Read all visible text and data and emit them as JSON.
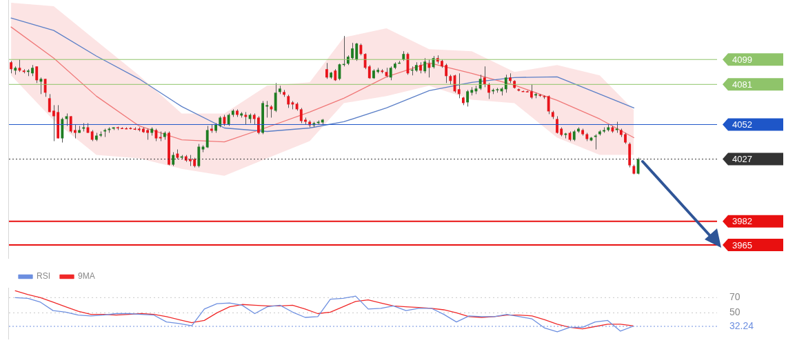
{
  "chart_data": [
    {
      "type": "candlestick",
      "categories": [
        null,
        null,
        null,
        null,
        null,
        null,
        null,
        null,
        null,
        null,
        null,
        null,
        null,
        null,
        null,
        null,
        null,
        null,
        null,
        null,
        null,
        null,
        null,
        null,
        null,
        null,
        null,
        null,
        null,
        null,
        null,
        null,
        null,
        null,
        null,
        null,
        null,
        null,
        null,
        null,
        null,
        null,
        null,
        null,
        null,
        null,
        null,
        null,
        null,
        null,
        null,
        null,
        null,
        null,
        null,
        null,
        null,
        null,
        null,
        null,
        null,
        null,
        null,
        null,
        null,
        null,
        null,
        null,
        null,
        null,
        null,
        null,
        null,
        null,
        null,
        null,
        null,
        null,
        null,
        null,
        null,
        null,
        null,
        null,
        null,
        null,
        null,
        null,
        null,
        null,
        null,
        null,
        null,
        null,
        null,
        null,
        null,
        null,
        null,
        null,
        null,
        null,
        null,
        null,
        null,
        null,
        null,
        null,
        null,
        null,
        null,
        null,
        null,
        null,
        null,
        null,
        null,
        null,
        null,
        null,
        null,
        null,
        null,
        null,
        null,
        null,
        null,
        null,
        null,
        null,
        null,
        null,
        null,
        null,
        null,
        null,
        null,
        null,
        null,
        null,
        null,
        null,
        null,
        null,
        null,
        null,
        null,
        null,
        null,
        null,
        null,
        null,
        null,
        null,
        null,
        null,
        null,
        null,
        null,
        null,
        null,
        null,
        null,
        null,
        null,
        null
      ],
      "ohlc": [
        [
          4097,
          4098,
          4089,
          4092
        ],
        [
          4091,
          4094,
          4088,
          4093
        ],
        [
          4093,
          4099,
          4090,
          4091
        ],
        [
          4091,
          4092,
          4089,
          4090
        ],
        [
          4090,
          4092,
          4087,
          4091
        ],
        [
          4089,
          4095,
          4087,
          4093
        ],
        [
          4094,
          4094,
          4082,
          4084
        ],
        [
          4083,
          4086,
          4074,
          4085
        ],
        [
          4085,
          4085,
          4072,
          4075
        ],
        [
          4071,
          4074,
          4061,
          4061
        ],
        [
          4062,
          4066,
          4040,
          4058
        ],
        [
          4061,
          4066,
          4042,
          4042
        ],
        [
          4042,
          4057,
          4039,
          4056
        ],
        [
          4056,
          4060,
          4051,
          4058
        ],
        [
          4058,
          4058,
          4046,
          4047
        ],
        [
          4048,
          4052,
          4042,
          4046
        ],
        [
          4046,
          4051,
          4046,
          4048
        ],
        [
          4049,
          4053,
          4047,
          4050
        ],
        [
          4050,
          4053,
          4046,
          4046
        ],
        [
          4047,
          4048,
          4040,
          4041
        ],
        [
          4041,
          4046,
          4040,
          4044
        ],
        [
          4044,
          4047,
          4043,
          4045
        ],
        [
          4047,
          4049,
          4043,
          4048
        ],
        [
          4048,
          4050,
          4046,
          4049
        ],
        [
          4049,
          4050,
          4048,
          4050
        ],
        [
          4050,
          4050.5,
          4048,
          4049.5
        ],
        [
          4049.5,
          4050,
          4049,
          4049.2
        ],
        [
          4049.3,
          4050,
          4048.7,
          4049
        ],
        [
          4049.5,
          4050,
          4048.5,
          4049
        ],
        [
          4049,
          4050,
          4048,
          4048.7
        ],
        [
          4049,
          4050,
          4047,
          4048
        ],
        [
          4049,
          4050,
          4046,
          4046.5
        ],
        [
          4048,
          4049,
          4041,
          4046
        ],
        [
          4046,
          4050,
          4044,
          4049
        ],
        [
          4048,
          4049,
          4040,
          4042
        ],
        [
          4043,
          4047,
          4040,
          4042
        ],
        [
          4043,
          4047,
          4041,
          4046
        ],
        [
          4046,
          4047,
          4022.5,
          4023
        ],
        [
          4023,
          4032,
          4022,
          4030
        ],
        [
          4031,
          4034,
          4027,
          4028
        ],
        [
          4028,
          4030,
          4027,
          4029
        ],
        [
          4029,
          4030,
          4025,
          4026
        ],
        [
          4027,
          4030,
          4022,
          4025.5
        ],
        [
          4027,
          4028,
          4021,
          4022
        ],
        [
          4022,
          4038,
          4021,
          4036
        ],
        [
          4034,
          4037,
          4032,
          4036
        ],
        [
          4035.5,
          4051,
          4035,
          4048
        ],
        [
          4049,
          4052,
          4046,
          4047.5
        ],
        [
          4047.5,
          4053,
          4046,
          4052
        ],
        [
          4051,
          4058,
          4050,
          4057
        ],
        [
          4057.5,
          4059,
          4051,
          4052.5
        ],
        [
          4052,
          4060,
          4051,
          4059
        ],
        [
          4059,
          4063,
          4057.5,
          4062
        ],
        [
          4062,
          4063,
          4057.5,
          4059
        ],
        [
          4058.5,
          4061,
          4057,
          4060
        ],
        [
          4059,
          4061,
          4052,
          4057.5
        ],
        [
          4056,
          4060,
          4053,
          4059
        ],
        [
          4059,
          4060,
          4052,
          4056
        ],
        [
          4057,
          4058,
          4045,
          4046
        ],
        [
          4046,
          4069,
          4045,
          4067.5
        ],
        [
          4065,
          4069,
          4057,
          4066
        ],
        [
          4065,
          4066,
          4057,
          4063
        ],
        [
          4062,
          4082,
          4061,
          4075
        ],
        [
          4075.5,
          4080,
          4074,
          4078
        ],
        [
          4075.5,
          4077,
          4072,
          4073.5
        ],
        [
          4072.5,
          4073.5,
          4064,
          4066.5
        ],
        [
          4068,
          4069,
          4063,
          4066.5
        ],
        [
          4067,
          4068,
          4062,
          4063
        ],
        [
          4063,
          4064,
          4053,
          4054.5
        ],
        [
          4055.5,
          4057,
          4052,
          4054
        ],
        [
          4054,
          4055,
          4050,
          4051.5
        ],
        [
          4051.5,
          4054,
          4050,
          4053
        ],
        [
          4053,
          4055,
          4052,
          4054
        ],
        [
          4053.5,
          4056,
          4052,
          4055.5
        ],
        [
          4092,
          4096.5,
          4085,
          4086
        ],
        [
          4086,
          4090,
          4085,
          4089.5
        ],
        [
          4091,
          4092,
          4083.5,
          4084
        ],
        [
          4085,
          4096,
          4084,
          4095.5
        ],
        [
          4095.5,
          4116,
          4094,
          4095.8
        ],
        [
          4096,
          4102,
          4095,
          4101
        ],
        [
          4100,
          4111,
          4099,
          4107
        ],
        [
          4099,
          4111,
          4098,
          4110.5
        ],
        [
          4109.5,
          4110.5,
          4102,
          4103
        ],
        [
          4103,
          4103.5,
          4092,
          4093
        ],
        [
          4094,
          4095,
          4085,
          4085.5
        ],
        [
          4085.5,
          4092,
          4085,
          4091
        ],
        [
          4090,
          4093,
          4089,
          4091.5
        ],
        [
          4091,
          4092,
          4089,
          4090
        ],
        [
          4090,
          4093,
          4086,
          4087
        ],
        [
          4086,
          4094,
          4084,
          4093
        ],
        [
          4093,
          4097,
          4092,
          4096
        ],
        [
          4096.5,
          4098,
          4096,
          4096.7
        ],
        [
          4099,
          4105,
          4098,
          4103
        ],
        [
          4103,
          4104,
          4088,
          4089
        ],
        [
          4091.5,
          4094,
          4087.5,
          4091.7
        ],
        [
          4091,
          4097,
          4090,
          4095
        ],
        [
          4095,
          4097,
          4089,
          4091
        ],
        [
          4090.5,
          4100,
          4089,
          4097.5
        ],
        [
          4096,
          4099,
          4086,
          4093
        ],
        [
          4093.5,
          4101.5,
          4092.5,
          4100
        ],
        [
          4100,
          4102,
          4096,
          4097.5
        ],
        [
          4098,
          4099,
          4093,
          4094
        ],
        [
          4095,
          4096,
          4082,
          4087
        ],
        [
          4087,
          4088,
          4081,
          4083.5
        ],
        [
          4087.5,
          4088,
          4075,
          4076
        ],
        [
          4077.5,
          4089,
          4071,
          4074
        ],
        [
          4071.5,
          4072,
          4066,
          4067.5
        ],
        [
          4068,
          4077,
          4065,
          4076
        ],
        [
          4075,
          4079,
          4073,
          4077
        ],
        [
          4076,
          4080,
          4074,
          4078
        ],
        [
          4078,
          4088,
          4077,
          4085
        ],
        [
          4086,
          4094,
          4079,
          4081
        ],
        [
          4081,
          4082,
          4070.5,
          4075
        ],
        [
          4076,
          4078,
          4074,
          4077
        ],
        [
          4077,
          4078.5,
          4075,
          4077.5
        ],
        [
          4076,
          4079,
          4073,
          4078
        ],
        [
          4077.5,
          4088,
          4075,
          4086
        ],
        [
          4086,
          4089,
          4082,
          4083.5
        ],
        [
          4083.5,
          4084,
          4078,
          4078.5
        ],
        [
          4077.5,
          4078,
          4076,
          4076.5
        ],
        [
          4076.2,
          4076.5,
          4075.7,
          4076
        ],
        [
          4076,
          4076.5,
          4075.5,
          4075.8
        ],
        [
          4076,
          4081,
          4070.5,
          4071.5
        ],
        [
          4073,
          4075,
          4071,
          4074
        ],
        [
          4073.5,
          4074,
          4072,
          4073
        ],
        [
          4072.5,
          4073,
          4070.5,
          4072
        ],
        [
          4072.5,
          4073,
          4059.5,
          4061.5
        ],
        [
          4061,
          4062,
          4056,
          4057.5
        ],
        [
          4056,
          4058,
          4045.5,
          4046
        ],
        [
          4049,
          4050,
          4043.5,
          4044.5
        ],
        [
          4044.5,
          4046,
          4042,
          4045.5
        ],
        [
          4046,
          4047,
          4040,
          4041
        ],
        [
          4041,
          4048,
          4040,
          4047
        ],
        [
          4047,
          4050,
          4046,
          4049
        ],
        [
          4048,
          4049,
          4044,
          4045
        ],
        [
          4045,
          4046,
          4040,
          4041.5
        ],
        [
          4040.5,
          4043,
          4040,
          4042.5
        ],
        [
          4043,
          4045,
          4034,
          4044
        ],
        [
          4045,
          4048,
          4044,
          4047
        ],
        [
          4047,
          4050,
          4046,
          4048
        ],
        [
          4048,
          4052,
          4047,
          4050
        ],
        [
          4050,
          4051,
          4046,
          4047
        ],
        [
          4048,
          4054,
          4046,
          4049
        ],
        [
          4048,
          4049,
          4043,
          4044.5
        ],
        [
          4045,
          4046,
          4038,
          4039
        ],
        [
          4038,
          4039,
          4021,
          4022.5
        ],
        [
          4022,
          4023,
          4016,
          4016.5
        ],
        [
          4016.5,
          4028,
          4016,
          4027
        ],
        null,
        null,
        null,
        null,
        null,
        null,
        null,
        null,
        null,
        null,
        null,
        null,
        null,
        null,
        null,
        null,
        null,
        null
      ],
      "colors": [
        "#e8141b",
        "#1e7d22",
        "#e8141b",
        "#e8141b",
        "#1e7d22",
        "#1e7d22",
        "#e8141b",
        "#1e7d22",
        "#e8141b",
        "#e8141b",
        "#e8141b",
        "#e8141b",
        "#1e7d22",
        "#1e7d22",
        "#e8141b",
        "#e8141b",
        "#1e7d22",
        "#1e7d22",
        "#e8141b",
        "#e8141b",
        "#1e7d22",
        "#1e7d22",
        "#1e7d22",
        "#1e7d22",
        "#1e7d22",
        "#e8141b",
        "#e8141b",
        "#e8141b",
        "#e8141b",
        "#e8141b",
        "#e8141b",
        "#e8141b",
        "#e8141b",
        "#1e7d22",
        "#e8141b",
        "#e8141b",
        "#1e7d22",
        "#e8141b",
        "#1e7d22",
        "#e8141b",
        "#1e7d22",
        "#e8141b",
        "#e8141b",
        "#e8141b",
        "#1e7d22",
        "#1e7d22",
        "#1e7d22",
        "#e8141b",
        "#1e7d22",
        "#1e7d22",
        "#e8141b",
        "#1e7d22",
        "#1e7d22",
        "#e8141b",
        "#1e7d22",
        "#e8141b",
        "#1e7d22",
        "#e8141b",
        "#e8141b",
        "#1e7d22",
        "#1e7d22",
        "#e8141b",
        "#1e7d22",
        "#1e7d22",
        "#e8141b",
        "#e8141b",
        "#e8141b",
        "#e8141b",
        "#e8141b",
        "#e8141b",
        "#e8141b",
        "#1e7d22",
        "#1e7d22",
        "#1e7d22",
        "#e8141b",
        "#1e7d22",
        "#e8141b",
        "#1e7d22",
        "#1e7d22",
        "#1e7d22",
        "#1e7d22",
        "#1e7d22",
        "#e8141b",
        "#e8141b",
        "#e8141b",
        "#1e7d22",
        "#1e7d22",
        "#e8141b",
        "#e8141b",
        "#1e7d22",
        "#1e7d22",
        "#1e7d22",
        "#1e7d22",
        "#e8141b",
        "#1e7d22",
        "#1e7d22",
        "#e8141b",
        "#1e7d22",
        "#e8141b",
        "#1e7d22",
        "#e8141b",
        "#e8141b",
        "#e8141b",
        "#e8141b",
        "#e8141b",
        "#e8141b",
        "#e8141b",
        "#1e7d22",
        "#1e7d22",
        "#1e7d22",
        "#1e7d22",
        "#e8141b",
        "#e8141b",
        "#1e7d22",
        "#1e7d22",
        "#1e7d22",
        "#1e7d22",
        "#e8141b",
        "#e8141b",
        "#e8141b",
        "#e8141b",
        "#e8141b",
        "#e8141b",
        "#1e7d22",
        "#e8141b",
        "#e8141b",
        "#e8141b",
        "#e8141b",
        "#e8141b",
        "#e8141b",
        "#1e7d22",
        "#e8141b",
        "#1e7d22",
        "#1e7d22",
        "#e8141b",
        "#e8141b",
        "#1e7d22",
        "#1e7d22",
        "#1e7d22",
        "#1e7d22",
        "#1e7d22",
        "#e8141b",
        "#1e7d22",
        "#e8141b",
        "#e8141b",
        "#e8141b",
        "#e8141b",
        "#1e7d22",
        null,
        null,
        null,
        null,
        null,
        null,
        null,
        null,
        null,
        null,
        null,
        null,
        null,
        null,
        null,
        null,
        null,
        null
      ],
      "series": [
        {
          "type": "line",
          "color": "#5b7fc7",
          "values": [
            4129,
            null,
            null,
            null,
            null,
            null,
            null,
            null,
            null,
            null,
            4120,
            null,
            null,
            null,
            null,
            null,
            null,
            null,
            null,
            null,
            4101.5,
            null,
            null,
            null,
            null,
            null,
            null,
            null,
            null,
            null,
            4085,
            null,
            null,
            null,
            null,
            null,
            null,
            null,
            null,
            null,
            4065,
            null,
            null,
            null,
            null,
            null,
            null,
            null,
            null,
            null,
            4049.5,
            null,
            null,
            null,
            null,
            null,
            null,
            null,
            null,
            null,
            4047,
            null,
            null,
            null,
            null,
            null,
            null,
            null,
            null,
            null,
            4049.5,
            null,
            null,
            null,
            null,
            null,
            null,
            null,
            4054,
            null,
            null,
            null,
            null,
            null,
            null,
            null,
            null,
            null,
            4064,
            null,
            null,
            null,
            null,
            null,
            null,
            null,
            null,
            null,
            4076.5,
            null,
            null,
            null,
            null,
            null,
            null,
            null,
            null,
            null,
            4082.5,
            null,
            null,
            null,
            null,
            null,
            null,
            null,
            null,
            null,
            4086,
            null,
            null,
            null,
            null,
            null,
            null,
            null,
            null,
            null,
            4086.5,
            null,
            null,
            null,
            null,
            null,
            null,
            null,
            null,
            null,
            4074,
            null,
            null,
            null,
            null,
            null,
            null,
            null,
            4064,
            null,
            null,
            null,
            null,
            null,
            null,
            null,
            null,
            null,
            null,
            null,
            null,
            null,
            null,
            null,
            null,
            null,
            null,
            null
          ]
        },
        {
          "type": "line",
          "color": "#f07878",
          "values": [
            4122.5,
            null,
            null,
            null,
            null,
            null,
            null,
            null,
            null,
            null,
            4100,
            null,
            null,
            null,
            null,
            null,
            null,
            null,
            null,
            null,
            4072.5,
            null,
            null,
            null,
            null,
            null,
            null,
            null,
            null,
            null,
            4051,
            null,
            null,
            null,
            null,
            null,
            null,
            null,
            null,
            null,
            4041,
            null,
            null,
            null,
            null,
            null,
            null,
            null,
            null,
            null,
            4039.5,
            null,
            null,
            null,
            null,
            null,
            null,
            null,
            null,
            null,
            4050,
            null,
            null,
            null,
            null,
            null,
            null,
            null,
            null,
            null,
            4061,
            null,
            null,
            null,
            null,
            null,
            null,
            null,
            4071,
            null,
            null,
            null,
            null,
            null,
            null,
            null,
            null,
            null,
            4086.5,
            null,
            null,
            null,
            null,
            null,
            null,
            null,
            null,
            null,
            4096.5,
            null,
            null,
            null,
            null,
            null,
            null,
            null,
            null,
            null,
            4089,
            null,
            null,
            null,
            null,
            null,
            null,
            null,
            null,
            null,
            4080.5,
            null,
            null,
            null,
            null,
            null,
            null,
            null,
            null,
            null,
            4069.5,
            null,
            null,
            null,
            null,
            null,
            null,
            null,
            null,
            null,
            4056,
            null,
            null,
            null,
            null,
            null,
            null,
            null,
            4042.5,
            null,
            null,
            null,
            null,
            null,
            null,
            null,
            null,
            null,
            null,
            null,
            null,
            null,
            null,
            null,
            null,
            null,
            null,
            null
          ],
          "upper": [
            4140,
            null,
            null,
            null,
            null,
            null,
            null,
            null,
            null,
            null,
            4137.5,
            null,
            null,
            null,
            null,
            null,
            null,
            null,
            null,
            null,
            4112.5,
            null,
            null,
            null,
            null,
            null,
            null,
            null,
            null,
            null,
            4087.5,
            null,
            null,
            null,
            null,
            null,
            null,
            null,
            null,
            null,
            4060,
            null,
            null,
            null,
            null,
            null,
            null,
            null,
            null,
            null,
            4060,
            null,
            null,
            null,
            null,
            null,
            null,
            null,
            null,
            null,
            4080,
            null,
            null,
            null,
            null,
            null,
            null,
            null,
            null,
            null,
            4082.5,
            null,
            null,
            null,
            null,
            null,
            null,
            null,
            4115,
            null,
            null,
            null,
            null,
            null,
            null,
            null,
            null,
            null,
            4121.5,
            null,
            null,
            null,
            null,
            null,
            null,
            null,
            null,
            null,
            4106.5,
            null,
            null,
            null,
            null,
            null,
            null,
            null,
            null,
            null,
            4105,
            null,
            null,
            null,
            null,
            null,
            null,
            null,
            null,
            null,
            4090,
            null,
            null,
            null,
            null,
            null,
            null,
            null,
            null,
            null,
            4095,
            null,
            null,
            null,
            null,
            null,
            null,
            null,
            null,
            null,
            4087.5,
            null,
            null,
            null,
            null,
            null,
            null,
            null,
            4062.5,
            null,
            null,
            null,
            null,
            null,
            null,
            null,
            null,
            null,
            null,
            null,
            null,
            null,
            null,
            null,
            null,
            null,
            null,
            null
          ],
          "lower": [
            4087.5,
            null,
            null,
            null,
            null,
            null,
            null,
            null,
            null,
            null,
            4055,
            null,
            null,
            null,
            null,
            null,
            null,
            null,
            null,
            null,
            4030,
            null,
            null,
            null,
            null,
            null,
            null,
            null,
            null,
            null,
            4027.5,
            null,
            null,
            null,
            null,
            null,
            null,
            null,
            null,
            null,
            4020,
            null,
            null,
            null,
            null,
            null,
            null,
            null,
            null,
            null,
            4015,
            null,
            null,
            null,
            null,
            null,
            null,
            null,
            null,
            null,
            4027.5,
            null,
            null,
            null,
            null,
            null,
            null,
            null,
            null,
            null,
            4040,
            null,
            null,
            null,
            null,
            null,
            null,
            null,
            4067.5,
            null,
            null,
            null,
            null,
            null,
            null,
            null,
            null,
            null,
            4072.5,
            null,
            null,
            null,
            null,
            null,
            null,
            null,
            null,
            null,
            4080,
            null,
            null,
            null,
            null,
            null,
            null,
            null,
            null,
            null,
            4070,
            null,
            null,
            null,
            null,
            null,
            null,
            null,
            null,
            null,
            4067.5,
            null,
            null,
            null,
            null,
            null,
            null,
            null,
            null,
            null,
            4042.5,
            null,
            null,
            null,
            null,
            null,
            null,
            null,
            null,
            null,
            4030,
            null,
            null,
            null,
            null,
            null,
            null,
            null,
            4030,
            null,
            null,
            null,
            null,
            null,
            null,
            null,
            null,
            null,
            null,
            null,
            null,
            null,
            null,
            null,
            null,
            null,
            null,
            null
          ]
        }
      ],
      "ylim": [
        3955,
        4142
      ],
      "yticks": [
        3965,
        3982,
        4027,
        4052,
        4081,
        4099
      ],
      "tick_labels": "y",
      "ref_lines": [
        {
          "axis": "y",
          "value": 4099,
          "color": "#8fc46a"
        },
        {
          "axis": "y",
          "value": 4081,
          "color": "#8fc46a"
        },
        {
          "axis": "y",
          "value": 4052,
          "color": "#1e56c8"
        },
        {
          "axis": "y",
          "value": 4027,
          "color": "#333333",
          "line_style": "dotted"
        },
        {
          "axis": "y",
          "value": 3982,
          "color": "#e81010"
        },
        {
          "axis": "y",
          "value": 3965,
          "color": "#e81010"
        }
      ]
    },
    {
      "type": "line",
      "categories": [
        null,
        null,
        null,
        null,
        null,
        null,
        null,
        null,
        null,
        null,
        null,
        null,
        null,
        null,
        null,
        null,
        null,
        null,
        null,
        null,
        null,
        null,
        null,
        null,
        null,
        null,
        null,
        null,
        null,
        null,
        null,
        null,
        null,
        null,
        null,
        null,
        null,
        null,
        null,
        null,
        null,
        null,
        null,
        null,
        null,
        null,
        null,
        null,
        null,
        null
      ],
      "series": [
        {
          "name": "RSI",
          "color": "#6d8fe0",
          "values": [
            70,
            69,
            64,
            53,
            51,
            47,
            46,
            47,
            49,
            49,
            48,
            47,
            38,
            36,
            33,
            55,
            62,
            63,
            60,
            49,
            58,
            60,
            51,
            44,
            45,
            68,
            69,
            72,
            55,
            56,
            59,
            53,
            56,
            56,
            48,
            38,
            46,
            45,
            45,
            48,
            45,
            42,
            30,
            25,
            31,
            31,
            38,
            40,
            26,
            32.24
          ]
        },
        {
          "name": "9MA",
          "color": "#f02828",
          "values": [
            79,
            74,
            70,
            64,
            58,
            52,
            48,
            48,
            47,
            48,
            49,
            48,
            45,
            41,
            37,
            40,
            50,
            58,
            61,
            60,
            59,
            59,
            60,
            55,
            49,
            51,
            58,
            65,
            67,
            63,
            59,
            58,
            57,
            56,
            54,
            50,
            45,
            44,
            45,
            47,
            47,
            46,
            41,
            35,
            31,
            29,
            32,
            35,
            35,
            33
          ]
        }
      ],
      "ylim": [
        15,
        83
      ],
      "yticks": [
        50,
        70
      ],
      "grid": "y",
      "tick_labels": "y",
      "legend": "top left",
      "ref_lines": [
        {
          "axis": "y",
          "value": 32.24,
          "label": "32.24",
          "color": "#6d8fe0",
          "line_style": "dotted"
        }
      ]
    }
  ]
}
